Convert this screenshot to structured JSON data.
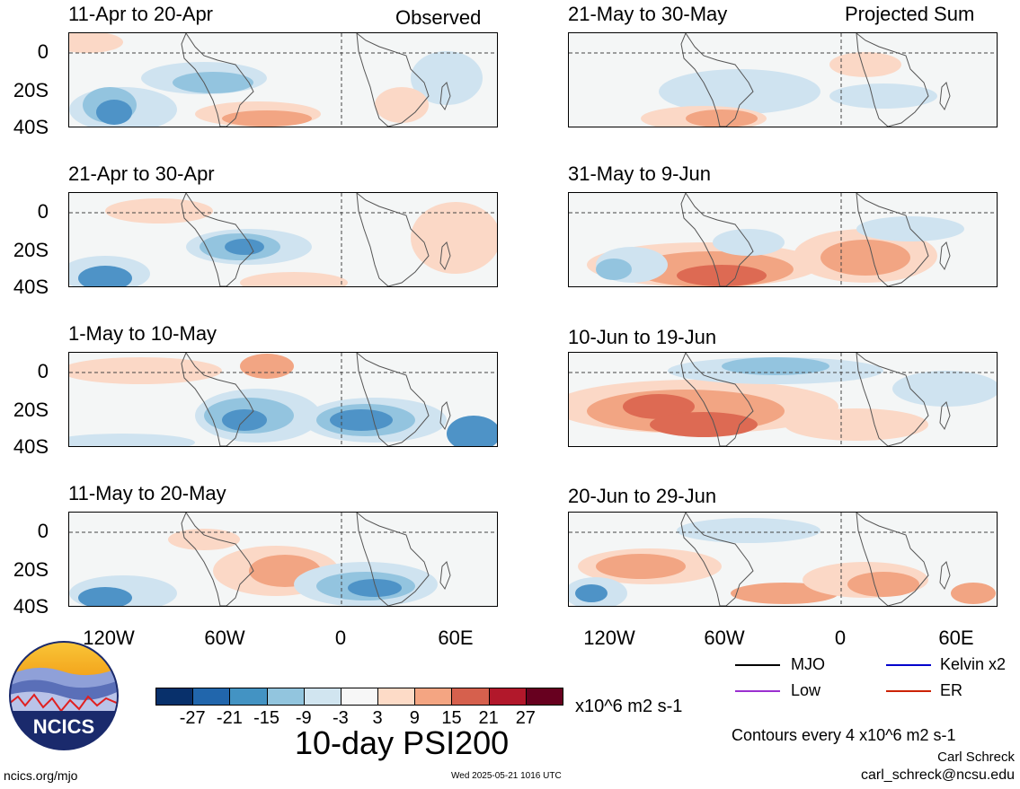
{
  "headings": {
    "left": "Observed",
    "right": "Projected Sum"
  },
  "panels": [
    {
      "title": "11-Apr to 20-Apr"
    },
    {
      "title": "21-Apr to 30-Apr"
    },
    {
      "title": "1-May to 10-May"
    },
    {
      "title": "11-May to 20-May"
    },
    {
      "title": "21-May to 30-May"
    },
    {
      "title": "31-May to 9-Jun"
    },
    {
      "title": "10-Jun to 19-Jun"
    },
    {
      "title": "20-Jun to 29-Jun"
    }
  ],
  "lat_labels": [
    "0",
    "20S",
    "40S"
  ],
  "lon_labels": [
    "120W",
    "60W",
    "0",
    "60E"
  ],
  "colorbar": {
    "colors": [
      "#08306b",
      "#2166ac",
      "#4393c3",
      "#92c5de",
      "#d1e5f0",
      "#f7f7f7",
      "#fddbc7",
      "#f4a582",
      "#d6604d",
      "#b2182b",
      "#67001f"
    ],
    "labels": [
      "-27",
      "-21",
      "-15",
      "-9",
      "-3",
      "3",
      "9",
      "15",
      "21",
      "27"
    ],
    "units": "x10^6 m2 s-1"
  },
  "title": "10-day PSI200",
  "legend": [
    {
      "label": "MJO",
      "color": "#000000"
    },
    {
      "label": "Kelvin x2",
      "color": "#0000cc"
    },
    {
      "label": "Low",
      "color": "#9b30d0"
    },
    {
      "label": "ER",
      "color": "#cc2200"
    }
  ],
  "contour_note": "Contours every 4 x10^6 m2 s-1",
  "author": "Carl Schreck",
  "email": "carl_schreck@ncsu.edu",
  "site": "ncics.org/mjo",
  "timestamp": "Wed 2025-05-21 1016 UTC",
  "logo_text": "NCICS"
}
